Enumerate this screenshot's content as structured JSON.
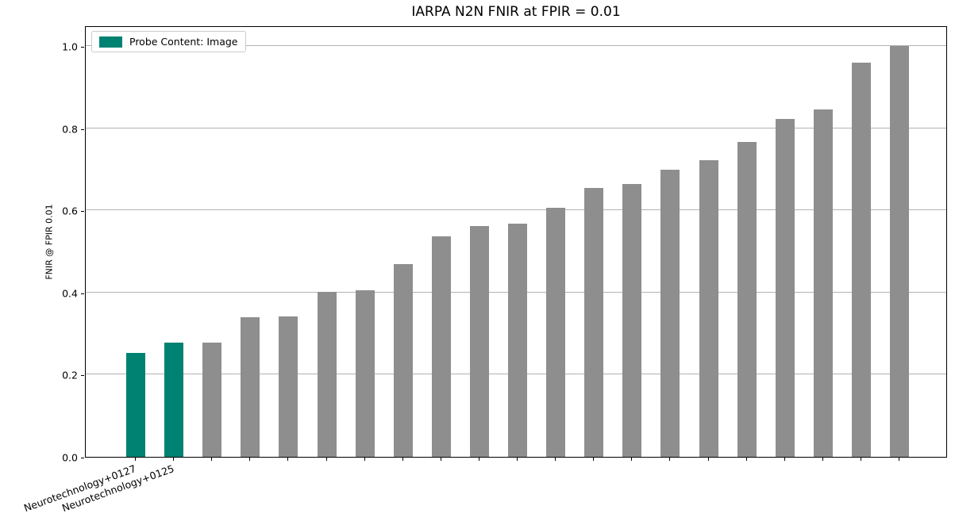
{
  "chart_data": {
    "type": "bar",
    "title": "IARPA N2N FNIR at FPIR = 0.01",
    "ylabel": "FNIR @ FPIR 0.01",
    "xlabel": "",
    "ylim": [
      0,
      1.05
    ],
    "yticks": [
      {
        "value": 0.0,
        "label": "0.0"
      },
      {
        "value": 0.2,
        "label": "0.2"
      },
      {
        "value": 0.4,
        "label": "0.4"
      },
      {
        "value": 0.6,
        "label": "0.6"
      },
      {
        "value": 0.8,
        "label": "0.8"
      },
      {
        "value": 1.0,
        "label": "1.0"
      }
    ],
    "grid": "horizontal",
    "legend": {
      "label": "Probe Content: Image",
      "position": "upper-left"
    },
    "colors": {
      "highlight": "#008272",
      "default": "#8e8e8e",
      "grid": "#b2b2b2",
      "spine": "#000000",
      "legend_border": "#cccccc"
    },
    "bars": [
      {
        "label": "Neurotechnology+0127",
        "value": 0.252,
        "highlighted": true
      },
      {
        "label": "Neurotechnology+0125",
        "value": 0.278,
        "highlighted": true
      },
      {
        "label": "",
        "value": 0.278,
        "highlighted": false
      },
      {
        "label": "",
        "value": 0.34,
        "highlighted": false
      },
      {
        "label": "",
        "value": 0.342,
        "highlighted": false
      },
      {
        "label": "",
        "value": 0.402,
        "highlighted": false
      },
      {
        "label": "",
        "value": 0.406,
        "highlighted": false
      },
      {
        "label": "",
        "value": 0.47,
        "highlighted": false
      },
      {
        "label": "",
        "value": 0.537,
        "highlighted": false
      },
      {
        "label": "",
        "value": 0.561,
        "highlighted": false
      },
      {
        "label": "",
        "value": 0.567,
        "highlighted": false
      },
      {
        "label": "",
        "value": 0.607,
        "highlighted": false
      },
      {
        "label": "",
        "value": 0.655,
        "highlighted": false
      },
      {
        "label": "",
        "value": 0.664,
        "highlighted": false
      },
      {
        "label": "",
        "value": 0.699,
        "highlighted": false
      },
      {
        "label": "",
        "value": 0.721,
        "highlighted": false
      },
      {
        "label": "",
        "value": 0.767,
        "highlighted": false
      },
      {
        "label": "",
        "value": 0.823,
        "highlighted": false
      },
      {
        "label": "",
        "value": 0.845,
        "highlighted": false
      },
      {
        "label": "",
        "value": 0.959,
        "highlighted": false
      },
      {
        "label": "",
        "value": 1.0,
        "highlighted": false
      }
    ]
  }
}
